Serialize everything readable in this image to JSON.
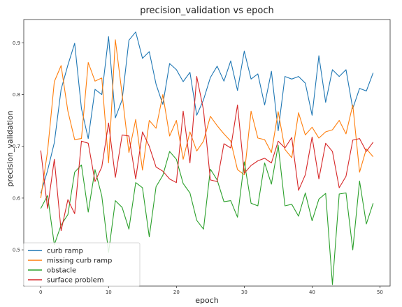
{
  "chart_data": {
    "type": "line",
    "title": "precision_validation vs epoch",
    "xlabel": "epoch",
    "ylabel": "precision_validation",
    "xlim": [
      -2.5,
      51.5
    ],
    "ylim": [
      0.43,
      0.945
    ],
    "xticks": [
      0,
      10,
      20,
      30,
      40,
      50
    ],
    "yticks": [
      0.5,
      0.6,
      0.7,
      0.8,
      0.9
    ],
    "grid": false,
    "legend_position": "lower-left",
    "x": [
      0,
      1,
      2,
      3,
      4,
      5,
      6,
      7,
      8,
      9,
      10,
      11,
      12,
      13,
      14,
      15,
      16,
      17,
      18,
      19,
      20,
      21,
      22,
      23,
      24,
      25,
      26,
      27,
      28,
      29,
      30,
      31,
      32,
      33,
      34,
      35,
      36,
      37,
      38,
      39,
      40,
      41,
      42,
      43,
      44,
      45,
      46,
      47,
      48,
      49
    ],
    "series": [
      {
        "name": "curb ramp",
        "color": "#1f77b4",
        "values": [
          0.609,
          0.653,
          0.707,
          0.81,
          0.857,
          0.899,
          0.773,
          0.715,
          0.81,
          0.8,
          0.912,
          0.755,
          0.79,
          0.905,
          0.921,
          0.87,
          0.883,
          0.82,
          0.781,
          0.86,
          0.848,
          0.825,
          0.843,
          0.76,
          0.79,
          0.833,
          0.855,
          0.826,
          0.865,
          0.808,
          0.884,
          0.83,
          0.84,
          0.78,
          0.845,
          0.73,
          0.835,
          0.83,
          0.835,
          0.822,
          0.76,
          0.875,
          0.785,
          0.848,
          0.835,
          0.848,
          0.773,
          0.812,
          0.807,
          0.842
        ]
      },
      {
        "name": "missing curb ramp",
        "color": "#ff7f0e",
        "values": [
          0.6,
          0.69,
          0.825,
          0.856,
          0.768,
          0.713,
          0.715,
          0.862,
          0.826,
          0.832,
          0.668,
          0.906,
          0.8,
          0.688,
          0.752,
          0.654,
          0.75,
          0.735,
          0.8,
          0.72,
          0.75,
          0.675,
          0.728,
          0.691,
          0.71,
          0.758,
          0.74,
          0.724,
          0.71,
          0.655,
          0.645,
          0.768,
          0.716,
          0.713,
          0.688,
          0.767,
          0.694,
          0.678,
          0.765,
          0.722,
          0.737,
          0.716,
          0.728,
          0.732,
          0.75,
          0.724,
          0.78,
          0.65,
          0.695,
          0.68
        ]
      },
      {
        "name": "obstacle",
        "color": "#2ca02c",
        "values": [
          0.58,
          0.605,
          0.51,
          0.548,
          0.568,
          0.65,
          0.664,
          0.573,
          0.655,
          0.604,
          0.495,
          0.595,
          0.582,
          0.54,
          0.63,
          0.62,
          0.525,
          0.622,
          0.644,
          0.69,
          0.675,
          0.628,
          0.61,
          0.557,
          0.54,
          0.656,
          0.635,
          0.593,
          0.595,
          0.563,
          0.67,
          0.59,
          0.585,
          0.668,
          0.627,
          0.702,
          0.585,
          0.588,
          0.565,
          0.61,
          0.556,
          0.598,
          0.609,
          0.433,
          0.608,
          0.61,
          0.5,
          0.633,
          0.55,
          0.59
        ]
      },
      {
        "name": "surface problem",
        "color": "#d62728",
        "values": [
          0.692,
          0.58,
          0.675,
          0.537,
          0.597,
          0.57,
          0.71,
          0.706,
          0.632,
          0.66,
          0.745,
          0.64,
          0.722,
          0.72,
          0.637,
          0.728,
          0.7,
          0.66,
          0.652,
          0.637,
          0.63,
          0.768,
          0.668,
          0.835,
          0.77,
          0.635,
          0.632,
          0.705,
          0.697,
          0.78,
          0.648,
          0.663,
          0.672,
          0.677,
          0.668,
          0.71,
          0.697,
          0.717,
          0.615,
          0.645,
          0.718,
          0.637,
          0.706,
          0.69,
          0.62,
          0.642,
          0.712,
          0.715,
          0.69,
          0.708
        ]
      }
    ]
  }
}
